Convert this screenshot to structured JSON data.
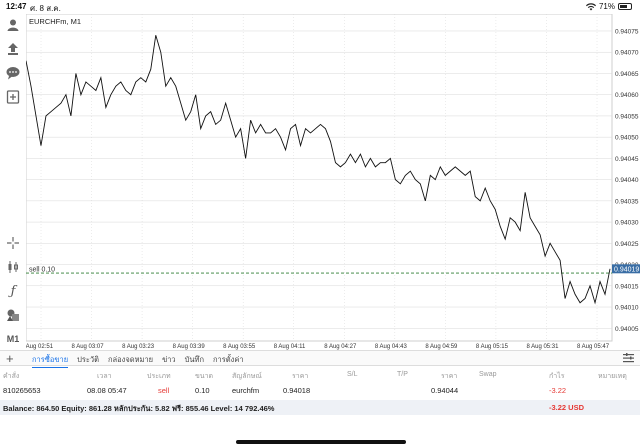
{
  "status_bar": {
    "time": "12:47",
    "date": "ศ. 8 ส.ค.",
    "battery": "71%",
    "battery_level": 0.71
  },
  "chart": {
    "symbol_label": "EURCHFm, M1",
    "order_line_label": "sell 0.10",
    "current_price_tag": "0.94019",
    "order_price": 0.94018,
    "price_ticks": [
      "0.94075",
      "0.94070",
      "0.94065",
      "0.94060",
      "0.94055",
      "0.94050",
      "0.94045",
      "0.94040",
      "0.94035",
      "0.94030",
      "0.94025",
      "0.94020",
      "0.94015",
      "0.94010",
      "0.94005"
    ],
    "time_ticks": [
      "8 Aug 02:51",
      "8 Aug 03:07",
      "8 Aug 03:23",
      "8 Aug 03:39",
      "8 Aug 03:55",
      "8 Aug 04:11",
      "8 Aug 04:27",
      "8 Aug 04:43",
      "8 Aug 04:59",
      "8 Aug 05:15",
      "8 Aug 05:31",
      "8 Aug 05:47"
    ],
    "colors": {
      "line": "#111111",
      "grid": "#d8d8d8",
      "order_line": "#2e7d32",
      "price_tag": "#3a6ea5"
    }
  },
  "chart_data": {
    "type": "line",
    "title": "EURCHFm, M1",
    "ylim": [
      0.94002,
      0.94079
    ],
    "x_range": [
      "8 Aug 02:47",
      "8 Aug 05:49"
    ],
    "values": [
      0.94068,
      0.94062,
      0.94055,
      0.94048,
      0.94055,
      0.94056,
      0.94057,
      0.94058,
      0.9406,
      0.94055,
      0.94065,
      0.9406,
      0.94063,
      0.94062,
      0.94061,
      0.94064,
      0.94057,
      0.9406,
      0.94062,
      0.94063,
      0.94061,
      0.9406,
      0.94063,
      0.94064,
      0.94063,
      0.94066,
      0.94074,
      0.9407,
      0.94062,
      0.94064,
      0.94062,
      0.94058,
      0.94054,
      0.94056,
      0.9406,
      0.94052,
      0.94055,
      0.94056,
      0.94053,
      0.94054,
      0.94058,
      0.94054,
      0.9405,
      0.94052,
      0.94045,
      0.94054,
      0.94051,
      0.94053,
      0.94051,
      0.94051,
      0.94052,
      0.9405,
      0.94047,
      0.94052,
      0.94053,
      0.94048,
      0.94052,
      0.94051,
      0.94052,
      0.94053,
      0.94052,
      0.94049,
      0.94044,
      0.94043,
      0.94044,
      0.94046,
      0.94044,
      0.94046,
      0.94043,
      0.94045,
      0.94043,
      0.94044,
      0.94044,
      0.94045,
      0.9404,
      0.94039,
      0.94041,
      0.94042,
      0.9404,
      0.94039,
      0.94035,
      0.94041,
      0.9404,
      0.94043,
      0.94041,
      0.94042,
      0.94043,
      0.94042,
      0.94041,
      0.94042,
      0.94036,
      0.94035,
      0.94038,
      0.94035,
      0.94033,
      0.94029,
      0.94026,
      0.94031,
      0.9403,
      0.94028,
      0.94037,
      0.94031,
      0.94029,
      0.94027,
      0.94022,
      0.94025,
      0.94023,
      0.94021,
      0.94012,
      0.94016,
      0.94013,
      0.94011,
      0.94012,
      0.94015,
      0.94011,
      0.94016,
      0.94013,
      0.94019
    ]
  },
  "sidebar": {
    "icons": [
      "user-icon",
      "trade-icon",
      "chat-icon",
      "new-order-icon",
      "crosshair-icon",
      "candles-icon",
      "indicator-icon",
      "objects-icon",
      "timeframe"
    ],
    "timeframe_label": "M1"
  },
  "tabs": [
    {
      "label": "การซื้อขาย",
      "active": true
    },
    {
      "label": "ประวัติ",
      "active": false
    },
    {
      "label": "กล่องจดหมาย",
      "active": false
    },
    {
      "label": "ข่าว",
      "active": false
    },
    {
      "label": "บันทึก",
      "active": false
    },
    {
      "label": "การตั้งค่า",
      "active": false
    }
  ],
  "table": {
    "headers": [
      "คำสั่ง",
      "เวลา",
      "ประเภท",
      "ขนาด",
      "สัญลักษณ์",
      "ราคา",
      "S/L",
      "T/P",
      "ราคา",
      "Swap",
      "กำไร",
      "หมายเหตุ"
    ],
    "row": {
      "order": "810265653",
      "time": "08.08 05:47",
      "type": "sell",
      "volume": "0.10",
      "symbol": "eurchfm",
      "price": "0.94018",
      "sl": "",
      "tp": "",
      "current_price": "0.94044",
      "swap": "",
      "profit": "-3.22",
      "comment": ""
    }
  },
  "balance": {
    "text": "Balance: 864.50 Equity: 861.28 หลักประกัน: 5.82 ฟรี: 855.46 Level: 14 792.46%",
    "total": "-3.22  USD"
  }
}
